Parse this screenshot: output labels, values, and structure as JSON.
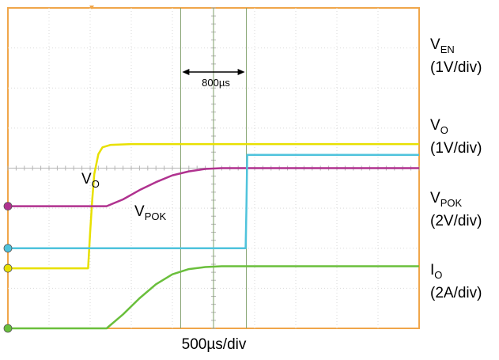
{
  "chart_data": {
    "type": "line",
    "x_unit": "div",
    "xlim": [
      0,
      10
    ],
    "ylim": [
      -4,
      4
    ],
    "time_per_div_label": "500µs/div",
    "annotation": {
      "text": "800µs",
      "from_div": 4.2,
      "to_div": 5.8
    },
    "cursors_div": [
      4.2,
      5.0,
      5.8
    ],
    "series": [
      {
        "id": "ven",
        "name_main": "V",
        "name_sub": "EN",
        "scale_label": "(1V/div)",
        "color": "#e8e000",
        "ground_div": -2.5,
        "x": [
          0,
          1.95,
          2.0,
          2.05,
          2.1,
          2.2,
          2.3,
          2.5,
          3.0,
          10
        ],
        "y": [
          -2.5,
          -2.5,
          -1.6,
          -0.8,
          -0.15,
          0.35,
          0.52,
          0.58,
          0.6,
          0.6
        ]
      },
      {
        "id": "vo",
        "name_main": "V",
        "name_sub": "O",
        "scale_label": "(1V/div)",
        "color": "#b0328f",
        "ground_div": -0.95,
        "x": [
          0,
          2.4,
          2.8,
          3.2,
          3.6,
          4.0,
          4.4,
          4.8,
          5.2,
          10
        ],
        "y": [
          -0.95,
          -0.95,
          -0.78,
          -0.55,
          -0.35,
          -0.18,
          -0.08,
          -0.02,
          0.0,
          0.0
        ]
      },
      {
        "id": "vpok",
        "name_main": "V",
        "name_sub": "POK",
        "scale_label": "(2V/div)",
        "color": "#4fc3dc",
        "ground_div": -2.0,
        "x": [
          0,
          5.78,
          5.8,
          5.82,
          10
        ],
        "y": [
          -2.0,
          -2.0,
          -1.0,
          0.33,
          0.33
        ]
      },
      {
        "id": "io",
        "name_main": "I",
        "name_sub": "O",
        "scale_label": "(2A/div)",
        "color": "#6abf3c",
        "ground_div": -4.0,
        "x": [
          0,
          2.4,
          2.8,
          3.2,
          3.6,
          4.0,
          4.4,
          4.8,
          5.2,
          10
        ],
        "y": [
          -4.0,
          -4.0,
          -3.65,
          -3.25,
          -2.9,
          -2.65,
          -2.52,
          -2.47,
          -2.45,
          -2.45
        ]
      }
    ],
    "inline_labels": [
      {
        "main": "V",
        "sub": "O"
      },
      {
        "main": "V",
        "sub": "POK"
      }
    ]
  }
}
